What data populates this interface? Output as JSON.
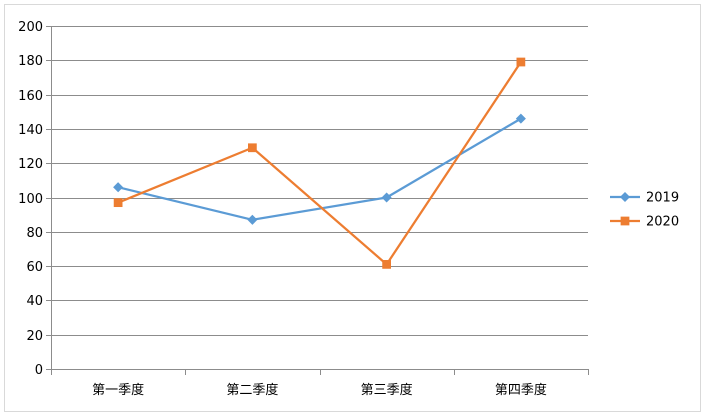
{
  "chart_data": {
    "type": "line",
    "title": "",
    "xlabel": "",
    "ylabel": "",
    "categories": [
      "第一季度",
      "第二季度",
      "第三季度",
      "第四季度"
    ],
    "ylim": [
      0,
      200
    ],
    "yticks": [
      "0",
      "20",
      "40",
      "60",
      "80",
      "100",
      "120",
      "140",
      "160",
      "180",
      "200"
    ],
    "grid": true,
    "legend": "right",
    "series": [
      {
        "name": "2019",
        "values": [
          106,
          87,
          100,
          146
        ],
        "color": "#5b9bd5",
        "marker": "diamond"
      },
      {
        "name": "2020",
        "values": [
          97,
          129,
          61,
          179
        ],
        "color": "#ed7d31",
        "marker": "square"
      }
    ]
  }
}
